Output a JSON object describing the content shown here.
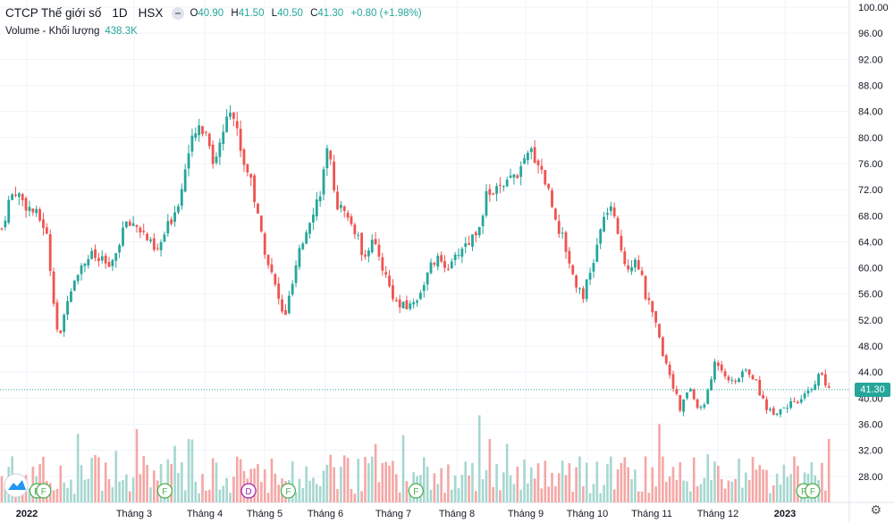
{
  "header": {
    "symbol": "CTCP Thế giới số",
    "interval": "1D",
    "exchange": "HSX",
    "open_label": "O",
    "open": "40.90",
    "high_label": "H",
    "high": "41.50",
    "low_label": "L",
    "low": "40.50",
    "close_label": "C",
    "close": "41.30",
    "change": "+0.80 (+1.98%)",
    "volume_label": "Volume - Khối lượng",
    "volume_value": "438.3K"
  },
  "colors": {
    "up": "#26a69a",
    "down": "#ef5350",
    "up_vol": "#a6d7d0",
    "down_vol": "#f4a7a5",
    "marker": "#4caf50"
  },
  "chart_data": {
    "type": "candlestick",
    "y_axis": {
      "min": 24,
      "max": 100,
      "ticks": [
        "100.00",
        "96.00",
        "92.00",
        "88.00",
        "84.00",
        "80.00",
        "76.00",
        "72.00",
        "68.00",
        "64.00",
        "60.00",
        "56.00",
        "52.00",
        "48.00",
        "44.00",
        "40.00",
        "36.00",
        "32.00",
        "28.00"
      ]
    },
    "x_labels": [
      "2022",
      "Tháng 3",
      "Tháng 4",
      "Tháng 5",
      "Tháng 6",
      "Tháng 7",
      "Tháng 8",
      "Tháng 9",
      "Tháng 10",
      "Tháng 11",
      "Tháng 12",
      "2023"
    ],
    "last_price": "41.30",
    "series_close": [
      {
        "t": 0,
        "v": 66
      },
      {
        "t": 0.3,
        "v": 70
      },
      {
        "t": 0.6,
        "v": 72
      },
      {
        "t": 1.0,
        "v": 70
      },
      {
        "t": 1.6,
        "v": 68
      },
      {
        "t": 2.0,
        "v": 66
      },
      {
        "t": 2.3,
        "v": 57
      },
      {
        "t": 2.6,
        "v": 48
      },
      {
        "t": 3.0,
        "v": 56
      },
      {
        "t": 3.5,
        "v": 60
      },
      {
        "t": 4.0,
        "v": 62
      },
      {
        "t": 4.5,
        "v": 61
      },
      {
        "t": 5.0,
        "v": 60
      },
      {
        "t": 5.5,
        "v": 66
      },
      {
        "t": 6.0,
        "v": 67
      },
      {
        "t": 6.5,
        "v": 65
      },
      {
        "t": 7.0,
        "v": 62
      },
      {
        "t": 7.5,
        "v": 66
      },
      {
        "t": 8.0,
        "v": 70
      },
      {
        "t": 8.5,
        "v": 78
      },
      {
        "t": 9.0,
        "v": 82
      },
      {
        "t": 9.4,
        "v": 80
      },
      {
        "t": 9.6,
        "v": 76
      },
      {
        "t": 10.0,
        "v": 80
      },
      {
        "t": 10.3,
        "v": 86
      },
      {
        "t": 10.6,
        "v": 82
      },
      {
        "t": 11.0,
        "v": 76
      },
      {
        "t": 11.3,
        "v": 74
      },
      {
        "t": 11.6,
        "v": 68
      },
      {
        "t": 12.0,
        "v": 62
      },
      {
        "t": 12.5,
        "v": 56
      },
      {
        "t": 12.8,
        "v": 52
      },
      {
        "t": 13.1,
        "v": 56
      },
      {
        "t": 13.5,
        "v": 62
      },
      {
        "t": 14.0,
        "v": 68
      },
      {
        "t": 14.4,
        "v": 71
      },
      {
        "t": 14.8,
        "v": 78
      },
      {
        "t": 15.2,
        "v": 70
      },
      {
        "t": 15.6,
        "v": 68
      },
      {
        "t": 16.0,
        "v": 66
      },
      {
        "t": 16.4,
        "v": 62
      },
      {
        "t": 16.8,
        "v": 64
      },
      {
        "t": 17.2,
        "v": 61
      },
      {
        "t": 17.6,
        "v": 57
      },
      {
        "t": 18.0,
        "v": 54
      },
      {
        "t": 18.4,
        "v": 54
      },
      {
        "t": 18.8,
        "v": 55
      },
      {
        "t": 19.2,
        "v": 58
      },
      {
        "t": 19.6,
        "v": 61
      },
      {
        "t": 20.0,
        "v": 61
      },
      {
        "t": 20.4,
        "v": 60
      },
      {
        "t": 20.8,
        "v": 63
      },
      {
        "t": 21.2,
        "v": 64
      },
      {
        "t": 21.6,
        "v": 66
      },
      {
        "t": 22.0,
        "v": 71
      },
      {
        "t": 22.4,
        "v": 72
      },
      {
        "t": 22.8,
        "v": 72
      },
      {
        "t": 23.2,
        "v": 74
      },
      {
        "t": 23.6,
        "v": 75
      },
      {
        "t": 24.0,
        "v": 78
      },
      {
        "t": 24.4,
        "v": 76
      },
      {
        "t": 24.8,
        "v": 72
      },
      {
        "t": 25.2,
        "v": 67
      },
      {
        "t": 25.6,
        "v": 63
      },
      {
        "t": 26.0,
        "v": 58
      },
      {
        "t": 26.4,
        "v": 56
      },
      {
        "t": 26.8,
        "v": 60
      },
      {
        "t": 27.2,
        "v": 66
      },
      {
        "t": 27.6,
        "v": 70
      },
      {
        "t": 28.0,
        "v": 64
      },
      {
        "t": 28.4,
        "v": 60
      },
      {
        "t": 28.8,
        "v": 62
      },
      {
        "t": 29.2,
        "v": 56
      },
      {
        "t": 29.6,
        "v": 52
      },
      {
        "t": 30.0,
        "v": 47
      },
      {
        "t": 30.4,
        "v": 43
      },
      {
        "t": 30.8,
        "v": 38
      },
      {
        "t": 31.2,
        "v": 42
      },
      {
        "t": 31.6,
        "v": 38
      },
      {
        "t": 32.0,
        "v": 40
      },
      {
        "t": 32.4,
        "v": 46
      },
      {
        "t": 32.8,
        "v": 44
      },
      {
        "t": 33.2,
        "v": 42
      },
      {
        "t": 33.6,
        "v": 44
      },
      {
        "t": 34.0,
        "v": 44
      },
      {
        "t": 34.4,
        "v": 41
      },
      {
        "t": 34.8,
        "v": 38
      },
      {
        "t": 35.2,
        "v": 38
      },
      {
        "t": 35.6,
        "v": 39
      },
      {
        "t": 36.0,
        "v": 39
      },
      {
        "t": 36.4,
        "v": 40
      },
      {
        "t": 36.8,
        "v": 42
      },
      {
        "t": 37.2,
        "v": 44
      },
      {
        "t": 37.5,
        "v": 41
      },
      {
        "t": 37.7,
        "v": 41.3
      }
    ],
    "markers": [
      {
        "t": 1.6,
        "label": "E",
        "color": "#4caf50"
      },
      {
        "t": 1.9,
        "label": "F",
        "color": "#4caf50"
      },
      {
        "t": 7.4,
        "label": "F",
        "color": "#4caf50"
      },
      {
        "t": 11.2,
        "label": "D",
        "color": "#9c27b0"
      },
      {
        "t": 13.0,
        "label": "F",
        "color": "#4caf50"
      },
      {
        "t": 18.8,
        "label": "F",
        "color": "#4caf50"
      },
      {
        "t": 36.4,
        "label": "F",
        "color": "#4caf50"
      },
      {
        "t": 36.8,
        "label": "F",
        "color": "#4caf50"
      }
    ],
    "legend": "top-left",
    "grid": true
  }
}
